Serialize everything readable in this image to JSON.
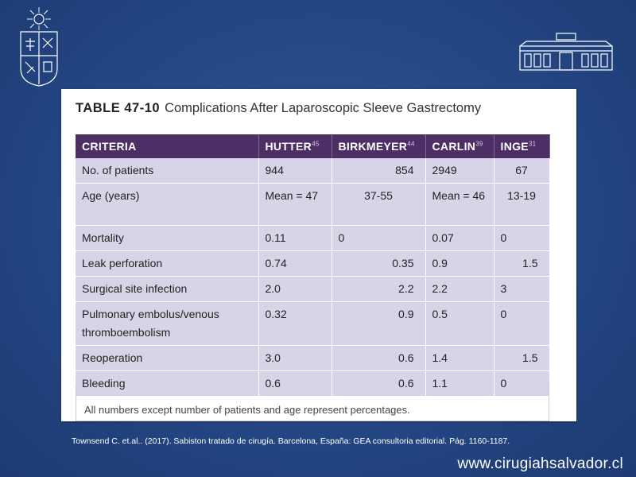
{
  "table": {
    "label": "TABLE 47-10",
    "title": "Complications After Laparoscopic Sleeve Gastrectomy",
    "headers": [
      {
        "text": "CRITERIA",
        "ref": ""
      },
      {
        "text": "HUTTER",
        "ref": "45"
      },
      {
        "text": "BIRKMEYER",
        "ref": "44"
      },
      {
        "text": "CARLIN",
        "ref": "39"
      },
      {
        "text": "INGE",
        "ref": "31"
      }
    ],
    "rows": [
      {
        "criteria": "No. of patients",
        "values": [
          "944",
          "854",
          "2949",
          "67"
        ]
      },
      {
        "criteria": "Age (years)",
        "values": [
          "Mean = 47",
          "37-55",
          "Mean = 46",
          "13-19"
        ]
      },
      {
        "criteria": "Mortality",
        "values": [
          "0.11",
          "0",
          "0.07",
          "0"
        ]
      },
      {
        "criteria": "Leak perforation",
        "values": [
          "0.74",
          "0.35",
          "0.9",
          "1.5"
        ]
      },
      {
        "criteria": "Surgical site infection",
        "values": [
          "2.0",
          "2.2",
          "2.2",
          "3"
        ]
      },
      {
        "criteria": "Pulmonary embolus/venous thromboembolism",
        "values": [
          "0.32",
          "0.9",
          "0.5",
          "0"
        ]
      },
      {
        "criteria": "Reoperation",
        "values": [
          "3.0",
          "0.6",
          "1.4",
          "1.5"
        ]
      },
      {
        "criteria": "Bleeding",
        "values": [
          "0.6",
          "0.6",
          "1.1",
          "0"
        ]
      }
    ],
    "footnote": "All numbers except number of patients and age represent percentages."
  },
  "citation": "Townsend C. et.al.. (2017). Sabiston tratado de cirugía. Barcelona, España: GEA consultoria editorial. Pág. 1160-1187.",
  "website": "www.cirugiahsalvador.cl",
  "icons": {
    "left_logo": "university-crest-icon",
    "right_logo": "hospital-building-icon"
  },
  "colors": {
    "background": "#244784",
    "table_header": "#4d2f66",
    "table_cell": "#d9d3e7"
  }
}
